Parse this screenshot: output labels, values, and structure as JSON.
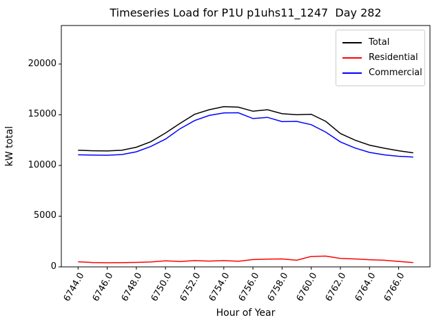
{
  "chart_data": {
    "type": "line",
    "title": "Timeseries Load for P1U p1uhs11_1247  Day 282",
    "xlabel": "Hour of Year",
    "ylabel": "kW total",
    "grid": false,
    "legend_position": "upper right",
    "xlim": [
      6742.85,
      6768.15
    ],
    "ylim": [
      0,
      23800
    ],
    "yticks": [
      0,
      5000,
      10000,
      15000,
      20000
    ],
    "ytick_labels": [
      "0",
      "5000",
      "10000",
      "15000",
      "20000"
    ],
    "xticks": [
      6744,
      6746,
      6748,
      6750,
      6752,
      6754,
      6756,
      6758,
      6760,
      6762,
      6764,
      6766
    ],
    "xtick_labels": [
      "6744.0",
      "6746.0",
      "6748.0",
      "6750.0",
      "6752.0",
      "6754.0",
      "6756.0",
      "6758.0",
      "6760.0",
      "6762.0",
      "6764.0",
      "6766.0"
    ],
    "x": [
      6744,
      6745,
      6746,
      6747,
      6748,
      6749,
      6750,
      6751,
      6752,
      6753,
      6754,
      6755,
      6756,
      6757,
      6758,
      6759,
      6760,
      6761,
      6762,
      6763,
      6764,
      6765,
      6766,
      6767
    ],
    "series": [
      {
        "name": "Total",
        "color": "#000000",
        "values": [
          11500,
          11450,
          11430,
          11500,
          11800,
          12350,
          13200,
          14150,
          15050,
          15500,
          15800,
          15750,
          15350,
          15500,
          15100,
          15000,
          15050,
          14350,
          13150,
          12500,
          12000,
          11700,
          11450,
          11250
        ]
      },
      {
        "name": "Residential",
        "color": "#ff0000",
        "values": [
          500,
          430,
          410,
          415,
          440,
          480,
          600,
          530,
          620,
          570,
          620,
          550,
          720,
          760,
          780,
          650,
          1030,
          1060,
          830,
          780,
          710,
          650,
          540,
          420
        ]
      },
      {
        "name": "Commercial",
        "color": "#0000ff",
        "values": [
          11050,
          11020,
          11010,
          11080,
          11350,
          11880,
          12600,
          13620,
          14430,
          14930,
          15180,
          15200,
          14630,
          14740,
          14320,
          14350,
          14020,
          13290,
          12320,
          11720,
          11290,
          11050,
          10910,
          10830
        ]
      }
    ]
  },
  "layout_note": ""
}
